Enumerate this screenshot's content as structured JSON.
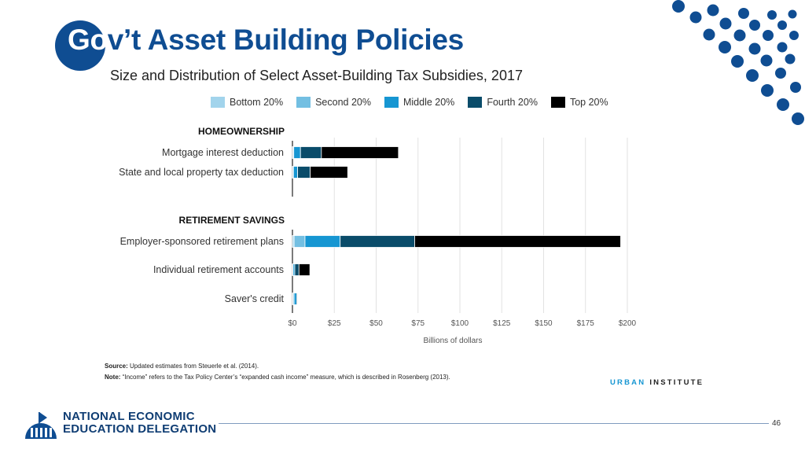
{
  "slide": {
    "title_first": "Go",
    "title_rest": "v’t Asset Building Policies",
    "page_number": "46",
    "org_name_line1": "NATIONAL ECONOMIC",
    "org_name_line2": "EDUCATION DELEGATION",
    "accent_color": "#0f4d92"
  },
  "chart_data": {
    "type": "bar",
    "orientation": "horizontal-stacked",
    "title": "Size and Distribution of Select Asset-Building Tax Subsidies, 2017",
    "xlabel": "Billions of dollars",
    "xlim": [
      0,
      200
    ],
    "x_ticks": [
      "$0",
      "$25",
      "$50",
      "$75",
      "$100",
      "$125",
      "$150",
      "$175",
      "$200"
    ],
    "grid": true,
    "legend_position": "top",
    "groups": [
      {
        "label": "HOMEOWNERSHIP",
        "categories": [
          "Mortgage interest deduction",
          "State and local property tax deduction"
        ]
      },
      {
        "label": "RETIREMENT SAVINGS",
        "categories": [
          "Employer-sponsored retirement plans",
          "Individual retirement accounts",
          "Saver's credit"
        ]
      }
    ],
    "categories": [
      "Mortgage interest deduction",
      "State and local property tax deduction",
      "Employer-sponsored retirement plans",
      "Individual retirement accounts",
      "Saver's credit"
    ],
    "series": [
      {
        "name": "Bottom 20%",
        "color": "#a2d4ec",
        "values": [
          0.2,
          0.2,
          1.0,
          0.1,
          0.3
        ]
      },
      {
        "name": "Second 20%",
        "color": "#73bfe2",
        "values": [
          0.6,
          0.4,
          6.5,
          0.3,
          0.7
        ]
      },
      {
        "name": "Middle 20%",
        "color": "#1696d2",
        "values": [
          4.0,
          2.5,
          21.0,
          1.0,
          1.5
        ]
      },
      {
        "name": "Fourth 20%",
        "color": "#0a4c6a",
        "values": [
          12.5,
          7.5,
          44.5,
          2.5,
          0.5
        ]
      },
      {
        "name": "Top 20%",
        "color": "#000000",
        "values": [
          46.0,
          22.4,
          123.0,
          6.5,
          0.0
        ]
      }
    ]
  },
  "notes": {
    "source_label": "Source:",
    "source_text": " Updated estimates from Steuerle et al. (2014).",
    "note_label": "Note:",
    "note_text": " “Income” refers to the Tax Policy Center’s “expanded cash income” measure, which is described in Rosenberg (2013).",
    "publisher_first": "URBAN",
    "publisher_second": "INSTITUTE"
  }
}
